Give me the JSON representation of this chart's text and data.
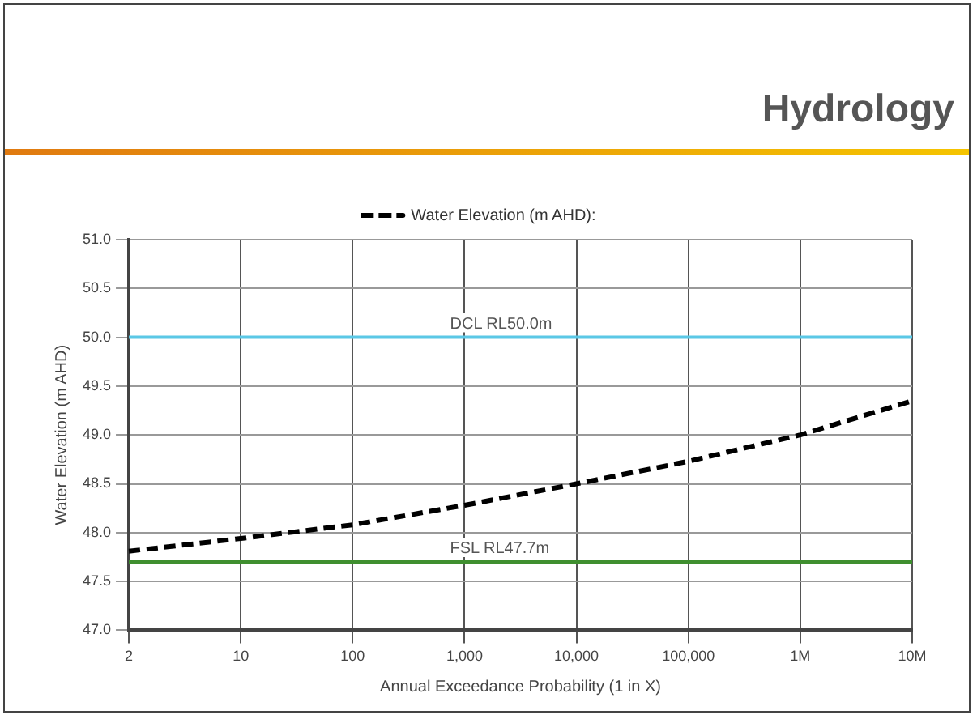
{
  "chart_data": {
    "type": "line",
    "title": "Hydrology",
    "categories": [
      "2",
      "10",
      "100",
      "1,000",
      "10,000",
      "100,000",
      "1M",
      "10M"
    ],
    "series": [
      {
        "name": "Water Elevation (m AHD):",
        "color": "#000000",
        "values": [
          47.81,
          47.94,
          48.08,
          48.28,
          48.5,
          48.73,
          49.0,
          49.35
        ]
      }
    ],
    "xlabel": "Annual Exceedance Probability (1 in X)",
    "ylabel": "Water Elevation (m AHD)",
    "ylim": [
      47,
      51
    ],
    "yticks": [
      {
        "value": 47,
        "label": "47.0"
      },
      47.5,
      {
        "value": 48,
        "label": "48.0"
      },
      48.5,
      {
        "value": 49,
        "label": "49.0"
      },
      49.5,
      {
        "value": 50,
        "label": "50.0"
      },
      50.5,
      {
        "value": 51,
        "label": "51.0"
      }
    ],
    "ref_lines": [
      {
        "axis": "y",
        "value": 50,
        "label": "DCL RL50.0m",
        "color": "#5bc8e6"
      },
      {
        "axis": "y",
        "value": 47.7,
        "label": "FSL RL47.7m",
        "color": "#3f8f2f"
      }
    ],
    "grid": true,
    "legend": "top",
    "marker": "none",
    "line_style": "dashed"
  }
}
